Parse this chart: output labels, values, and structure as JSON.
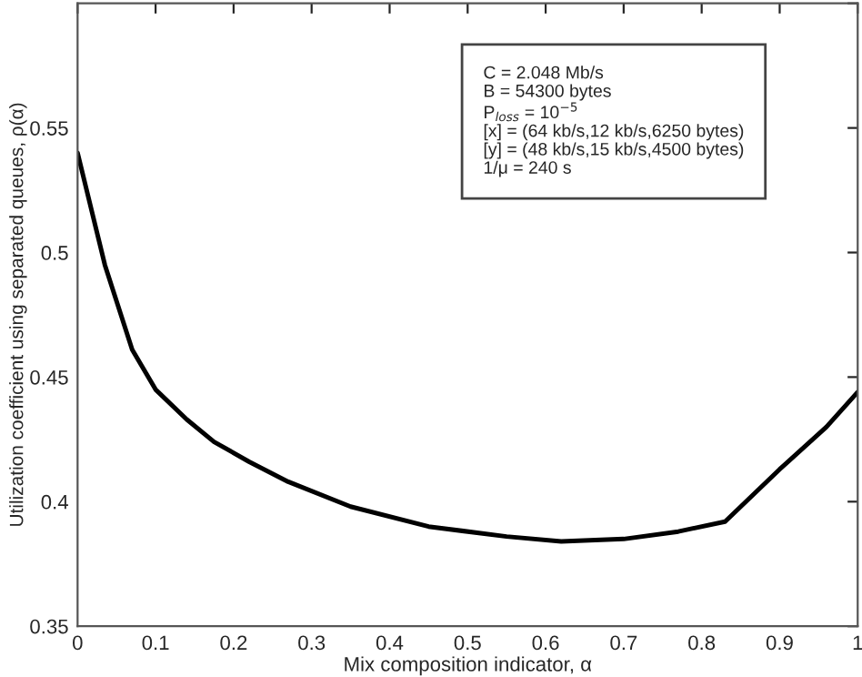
{
  "chart_data": {
    "type": "line",
    "xlabel": "Mix composition indicator, α",
    "ylabel": "Utilization coefficient using separated queues, ρ(α)",
    "x": [
      0,
      0.035,
      0.07,
      0.1,
      0.14,
      0.175,
      0.22,
      0.27,
      0.35,
      0.45,
      0.55,
      0.62,
      0.7,
      0.77,
      0.83,
      0.9,
      0.96,
      1.0
    ],
    "series": [
      {
        "color": "#000000",
        "values": [
          0.54,
          0.495,
          0.461,
          0.445,
          0.433,
          0.424,
          0.416,
          0.408,
          0.398,
          0.39,
          0.386,
          0.384,
          0.385,
          0.388,
          0.392,
          0.413,
          0.43,
          0.444
        ]
      }
    ],
    "xlim": [
      0,
      1
    ],
    "ylim": [
      0.35,
      0.6
    ],
    "xticks": [
      0,
      0.1,
      0.2,
      0.3,
      0.4,
      0.5,
      0.6,
      0.7,
      0.8,
      0.9,
      1
    ],
    "yticks": [
      0.35,
      0.4,
      0.45,
      0.5,
      0.55,
      {
        "value": 0.6,
        "label": null
      }
    ],
    "grid": false,
    "line_style": "solid",
    "marker": "none",
    "annotations": [
      "C = 2.048 Mb/s\nB = 54300 bytes\nP$_{loss}$ = 10$^{−5}$\n[x] = (64 kb/s,12 kb/s,6250 bytes)\n[y] = (48 kb/s,15 kb/s,4500 bytes)\n1/μ = 240 s"
    ]
  }
}
